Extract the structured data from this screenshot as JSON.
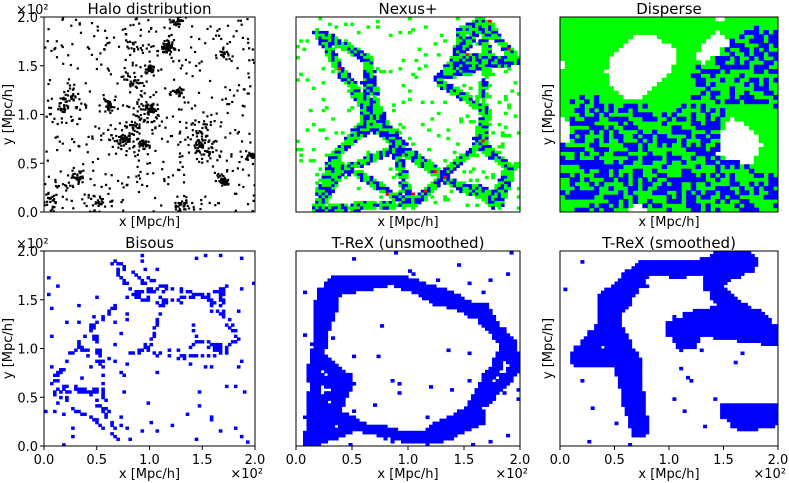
{
  "colors": {
    "halo": "#000000",
    "wall": "#00ff00",
    "filament": "#0000ff",
    "node": "#ff0000",
    "background": "#ffffff"
  },
  "chart_data": [
    {
      "type": "scatter",
      "title": "Halo distribution",
      "xlabel": "x [Mpc/h]",
      "ylabel": "y [Mpc/h]",
      "xlim": [
        0,
        200
      ],
      "ylim": [
        0,
        200
      ],
      "xticks": [],
      "yticks": [
        "0.0",
        "0.5",
        "1.0",
        "1.5",
        "2.0"
      ],
      "y_scale_label": "×10²",
      "x_scale_label": "",
      "series": [
        {
          "style": "points",
          "color": "#000000",
          "seed": 11,
          "count": 1200
        }
      ]
    },
    {
      "type": "heatmap",
      "title": "Nexus+",
      "xlabel": "x [Mpc/h]",
      "ylabel": "",
      "xlim": [
        0,
        200
      ],
      "ylim": [
        0,
        200
      ],
      "xticks": [],
      "yticks": [],
      "y_scale_label": "",
      "x_scale_label": "",
      "series": [
        {
          "style": "web",
          "colors": [
            "#00ff00",
            "#0000ff",
            "#ff0000"
          ],
          "seed": 23,
          "grid": 70
        }
      ]
    },
    {
      "type": "heatmap",
      "title": "Disperse",
      "xlabel": "x [Mpc/h]",
      "ylabel": "y [Mpc/h]",
      "xlim": [
        0,
        200
      ],
      "ylim": [
        0,
        200
      ],
      "xticks": [],
      "yticks": [],
      "y_scale_label": "",
      "x_scale_label": "",
      "series": [
        {
          "style": "blobs",
          "colors": [
            "#00ff00",
            "#0000ff"
          ],
          "seed": 37,
          "grid": 45
        }
      ]
    },
    {
      "type": "heatmap",
      "title": "Bisous",
      "xlabel": "x [Mpc/h]",
      "ylabel": "y [Mpc/h]",
      "xlim": [
        0,
        200
      ],
      "ylim": [
        0,
        200
      ],
      "xticks": [
        "0.0",
        "0.5",
        "1.0",
        "1.5",
        "2.0"
      ],
      "yticks": [
        "0.0",
        "0.5",
        "1.0",
        "1.5",
        "2.0"
      ],
      "y_scale_label": "×10²",
      "x_scale_label": "×10²",
      "series": [
        {
          "style": "sparse",
          "colors": [
            "#0000ff"
          ],
          "seed": 41,
          "grid": 70
        }
      ]
    },
    {
      "type": "heatmap",
      "title": "T-ReX (unsmoothed)",
      "xlabel": "x [Mpc/h]",
      "ylabel": "",
      "xlim": [
        0,
        200
      ],
      "ylim": [
        0,
        200
      ],
      "xticks": [
        "0.0",
        "0.5",
        "1.0",
        "1.5",
        "2.0"
      ],
      "yticks": [],
      "y_scale_label": "",
      "x_scale_label": "×10²",
      "series": [
        {
          "style": "filaments",
          "colors": [
            "#0000ff"
          ],
          "seed": 53,
          "grid": 64
        }
      ]
    },
    {
      "type": "heatmap",
      "title": "T-ReX (smoothed)",
      "xlabel": "x [Mpc/h]",
      "ylabel": "y [Mpc/h]",
      "xlim": [
        0,
        200
      ],
      "ylim": [
        0,
        200
      ],
      "xticks": [
        "0.0",
        "0.5",
        "1.0",
        "1.5",
        "2.0"
      ],
      "yticks": [],
      "y_scale_label": "",
      "x_scale_label": "×10²",
      "series": [
        {
          "style": "thick",
          "colors": [
            "#0000ff"
          ],
          "seed": 67,
          "grid": 64
        }
      ]
    }
  ]
}
